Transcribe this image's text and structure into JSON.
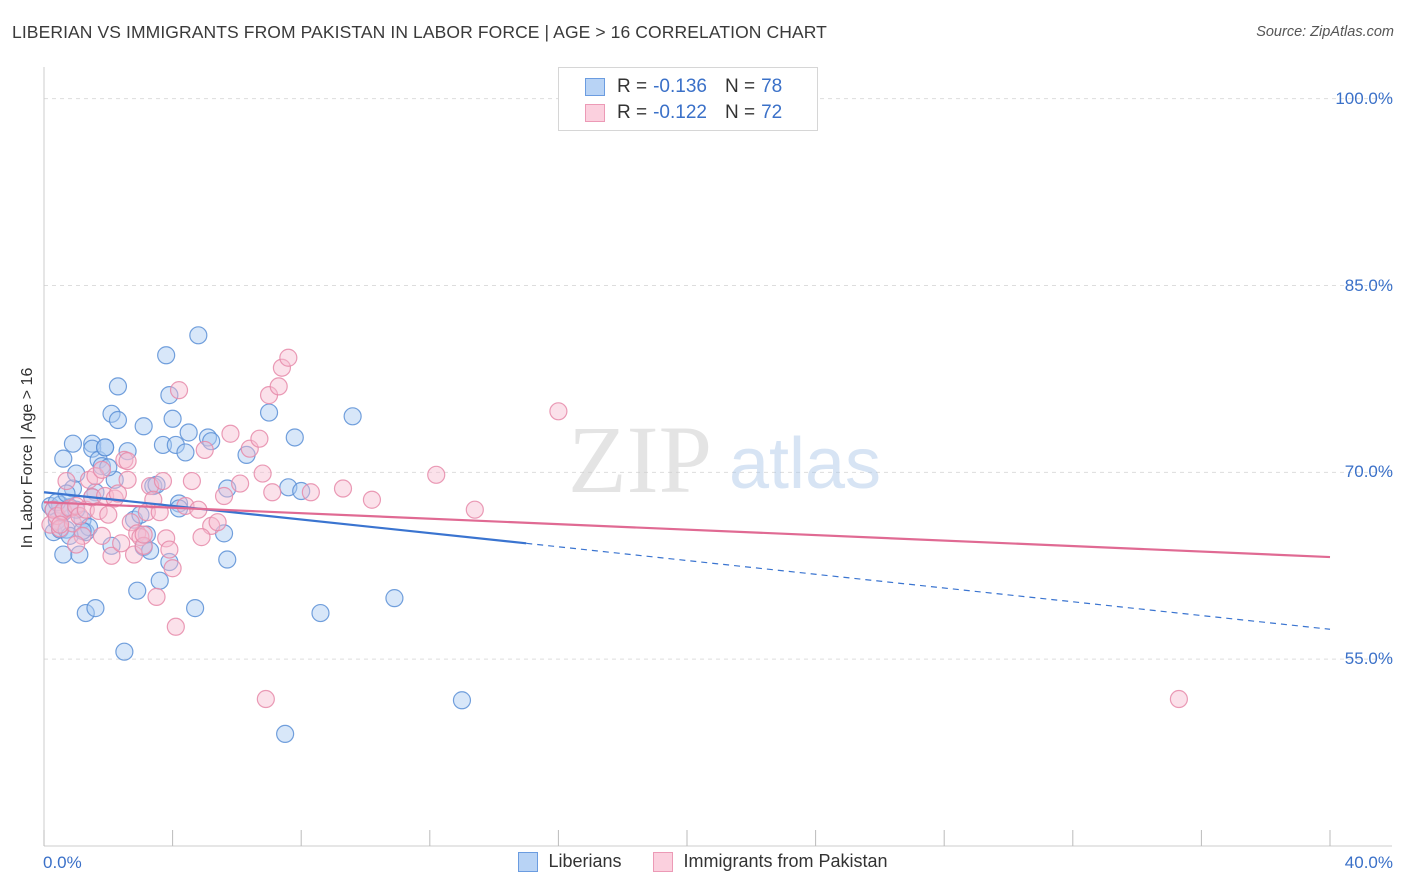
{
  "header": {
    "title": "LIBERIAN VS IMMIGRANTS FROM PAKISTAN IN LABOR FORCE | AGE > 16 CORRELATION CHART",
    "source": "Source: ZipAtlas.com"
  },
  "watermark": {
    "zip": "ZIP",
    "atlas": "atlas"
  },
  "colors": {
    "blue_fill": "#a9c9f2",
    "blue_stroke": "#5b8fd6",
    "blue_line": "#3a74d0",
    "pink_fill": "#f7bdd0",
    "pink_stroke": "#e68aa9",
    "pink_line": "#e06a93",
    "tick_text": "#3a70c8",
    "grid": "#dddddd"
  },
  "legend_top": {
    "rows": [
      {
        "r_label": "R =",
        "r_value": "-0.136",
        "n_label": "N =",
        "n_value": "78"
      },
      {
        "r_label": "R =",
        "r_value": "-0.122",
        "n_label": "N =",
        "n_value": "72"
      }
    ]
  },
  "chart_data": {
    "type": "scatter",
    "title": "LIBERIAN VS IMMIGRANTS FROM PAKISTAN IN LABOR FORCE | AGE > 16 CORRELATION CHART",
    "xlabel": "",
    "ylabel": "In Labor Force | Age > 16",
    "xlim": [
      0,
      40
    ],
    "ylim": [
      40,
      101.5
    ],
    "x_tick_labels": [
      "0.0%",
      "40.0%"
    ],
    "y_ticks": [
      {
        "value": 100,
        "label": "100.0%"
      },
      {
        "value": 85,
        "label": "85.0%"
      },
      {
        "value": 70,
        "label": "70.0%"
      },
      {
        "value": 55,
        "label": "55.0%"
      }
    ],
    "grid": true,
    "legend_position": "bottom",
    "series": [
      {
        "name": "Liberians",
        "color": "blue",
        "trend": {
          "x_start": 0,
          "y_start": 68.4,
          "x_solid_end": 15,
          "y_solid_end": 64.3,
          "x_end": 40,
          "y_end": 57.4
        },
        "points": [
          [
            0.2,
            67.3
          ],
          [
            0.3,
            65.2
          ],
          [
            0.3,
            67.0
          ],
          [
            0.4,
            66.1
          ],
          [
            0.5,
            67.4
          ],
          [
            0.5,
            65.4
          ],
          [
            0.6,
            66.8
          ],
          [
            0.6,
            71.1
          ],
          [
            0.6,
            63.4
          ],
          [
            0.7,
            65.4
          ],
          [
            0.8,
            64.9
          ],
          [
            0.8,
            67.2
          ],
          [
            0.9,
            72.3
          ],
          [
            0.9,
            68.7
          ],
          [
            1.0,
            69.9
          ],
          [
            1.1,
            63.4
          ],
          [
            1.2,
            66.2
          ],
          [
            1.3,
            65.2
          ],
          [
            1.3,
            58.7
          ],
          [
            1.4,
            65.6
          ],
          [
            1.5,
            72.3
          ],
          [
            1.5,
            71.9
          ],
          [
            1.6,
            59.1
          ],
          [
            1.6,
            68.4
          ],
          [
            1.7,
            71.0
          ],
          [
            1.8,
            70.5
          ],
          [
            1.9,
            72.0
          ],
          [
            1.9,
            72.0
          ],
          [
            2.1,
            74.7
          ],
          [
            2.1,
            64.1
          ],
          [
            2.2,
            69.4
          ],
          [
            2.3,
            76.9
          ],
          [
            2.3,
            74.2
          ],
          [
            2.5,
            55.6
          ],
          [
            2.6,
            71.7
          ],
          [
            2.8,
            66.2
          ],
          [
            2.9,
            60.5
          ],
          [
            3.0,
            66.6
          ],
          [
            3.1,
            64.0
          ],
          [
            3.1,
            73.7
          ],
          [
            3.2,
            65.0
          ],
          [
            3.3,
            63.7
          ],
          [
            3.4,
            68.9
          ],
          [
            3.6,
            61.3
          ],
          [
            3.7,
            72.2
          ],
          [
            3.8,
            79.4
          ],
          [
            3.9,
            62.8
          ],
          [
            3.9,
            76.2
          ],
          [
            4.0,
            74.3
          ],
          [
            4.1,
            72.2
          ],
          [
            4.2,
            67.5
          ],
          [
            4.2,
            67.1
          ],
          [
            4.4,
            71.6
          ],
          [
            4.5,
            73.2
          ],
          [
            4.7,
            59.1
          ],
          [
            4.8,
            81.0
          ],
          [
            5.1,
            72.8
          ],
          [
            5.2,
            72.5
          ],
          [
            5.6,
            65.1
          ],
          [
            5.7,
            63.0
          ],
          [
            5.7,
            68.7
          ],
          [
            6.3,
            71.4
          ],
          [
            7.0,
            74.8
          ],
          [
            7.5,
            49.0
          ],
          [
            7.6,
            68.8
          ],
          [
            7.8,
            72.8
          ],
          [
            8.0,
            68.5
          ],
          [
            8.6,
            58.7
          ],
          [
            9.6,
            74.5
          ],
          [
            10.9,
            59.9
          ],
          [
            13.0,
            51.7
          ],
          [
            1.0,
            67.0
          ],
          [
            0.4,
            67.6
          ],
          [
            1.2,
            65.3
          ],
          [
            2.0,
            70.4
          ],
          [
            0.7,
            68.3
          ],
          [
            1.5,
            68.0
          ],
          [
            3.5,
            69.0
          ]
        ]
      },
      {
        "name": "Immigrants from Pakistan",
        "color": "pink",
        "trend": {
          "x_start": 0,
          "y_start": 67.6,
          "x_end": 40,
          "y_end": 63.2
        },
        "points": [
          [
            0.2,
            65.8
          ],
          [
            0.3,
            67.0
          ],
          [
            0.4,
            66.5
          ],
          [
            0.5,
            65.5
          ],
          [
            0.6,
            66.9
          ],
          [
            0.7,
            69.3
          ],
          [
            0.8,
            67.1
          ],
          [
            0.9,
            65.9
          ],
          [
            1.0,
            67.3
          ],
          [
            1.1,
            66.5
          ],
          [
            1.2,
            64.9
          ],
          [
            1.3,
            67.0
          ],
          [
            1.4,
            69.4
          ],
          [
            1.5,
            68.0
          ],
          [
            1.6,
            69.7
          ],
          [
            1.7,
            66.9
          ],
          [
            1.8,
            64.9
          ],
          [
            1.9,
            68.1
          ],
          [
            2.0,
            66.6
          ],
          [
            2.1,
            63.3
          ],
          [
            2.2,
            67.9
          ],
          [
            2.3,
            68.3
          ],
          [
            2.4,
            64.3
          ],
          [
            2.5,
            71.0
          ],
          [
            2.6,
            69.4
          ],
          [
            2.7,
            66.0
          ],
          [
            2.8,
            63.4
          ],
          [
            2.9,
            65.1
          ],
          [
            3.0,
            64.8
          ],
          [
            3.1,
            64.1
          ],
          [
            3.2,
            66.8
          ],
          [
            3.3,
            68.9
          ],
          [
            3.4,
            67.8
          ],
          [
            3.5,
            60.0
          ],
          [
            3.6,
            66.8
          ],
          [
            3.7,
            69.3
          ],
          [
            3.8,
            64.7
          ],
          [
            3.9,
            63.8
          ],
          [
            4.0,
            62.3
          ],
          [
            4.1,
            57.6
          ],
          [
            4.2,
            76.6
          ],
          [
            4.4,
            67.3
          ],
          [
            4.6,
            69.3
          ],
          [
            4.8,
            67.0
          ],
          [
            5.0,
            71.8
          ],
          [
            5.2,
            65.7
          ],
          [
            5.4,
            66.0
          ],
          [
            5.6,
            68.1
          ],
          [
            5.8,
            73.1
          ],
          [
            6.1,
            69.1
          ],
          [
            6.4,
            71.9
          ],
          [
            6.7,
            72.7
          ],
          [
            6.8,
            69.9
          ],
          [
            6.9,
            51.8
          ],
          [
            7.0,
            76.2
          ],
          [
            7.1,
            68.4
          ],
          [
            7.3,
            76.9
          ],
          [
            7.4,
            78.4
          ],
          [
            7.6,
            79.2
          ],
          [
            8.3,
            68.4
          ],
          [
            9.3,
            68.7
          ],
          [
            10.2,
            67.8
          ],
          [
            12.2,
            69.8
          ],
          [
            13.4,
            67.0
          ],
          [
            16.0,
            74.9
          ],
          [
            35.3,
            51.8
          ],
          [
            0.5,
            65.8
          ],
          [
            1.0,
            64.2
          ],
          [
            1.8,
            70.2
          ],
          [
            2.6,
            70.9
          ],
          [
            3.1,
            65.0
          ],
          [
            4.9,
            64.8
          ]
        ]
      }
    ]
  },
  "bottom_legend": {
    "items": [
      {
        "label": "Liberians"
      },
      {
        "label": "Immigrants from Pakistan"
      }
    ]
  }
}
